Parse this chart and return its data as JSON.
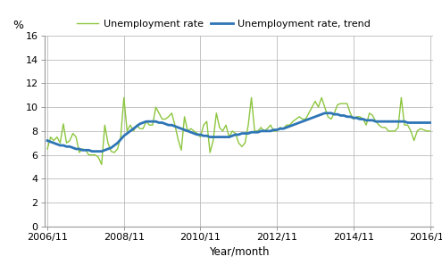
{
  "title": "",
  "ylabel": "%",
  "xlabel": "Year/month",
  "xtick_labels": [
    "2006/11",
    "2008/11",
    "2010/11",
    "2012/11",
    "2014/11",
    "2016/11"
  ],
  "ylim": [
    0,
    16
  ],
  "yticks": [
    0,
    2,
    4,
    6,
    8,
    10,
    12,
    14,
    16
  ],
  "line_color": "#8dc63f",
  "trend_color": "#2e75b6",
  "line_lw": 1.0,
  "trend_lw": 2.0,
  "legend_entries": [
    "Unemployment rate",
    "Unemployment rate, trend"
  ],
  "unemployment_rate": [
    6.5,
    7.5,
    7.2,
    7.5,
    7.0,
    8.6,
    7.0,
    7.2,
    7.8,
    7.5,
    6.2,
    6.5,
    6.4,
    6.0,
    6.0,
    6.0,
    5.8,
    5.2,
    8.5,
    7.0,
    6.3,
    6.2,
    6.5,
    7.5,
    10.8,
    8.0,
    8.5,
    8.0,
    8.5,
    8.2,
    8.2,
    8.8,
    8.5,
    8.5,
    10.0,
    9.5,
    9.0,
    9.0,
    9.2,
    9.5,
    8.5,
    7.3,
    6.4,
    9.2,
    8.0,
    8.2,
    8.0,
    7.8,
    7.5,
    8.5,
    8.8,
    6.2,
    7.2,
    9.5,
    8.3,
    8.0,
    8.5,
    7.5,
    8.0,
    7.8,
    7.0,
    6.7,
    7.0,
    8.5,
    10.8,
    8.0,
    8.0,
    8.3,
    8.0,
    8.2,
    8.5,
    8.0,
    8.0,
    8.3,
    8.2,
    8.5,
    8.5,
    8.8,
    9.0,
    9.2,
    9.0,
    9.0,
    9.5,
    10.0,
    10.5,
    10.0,
    10.8,
    10.0,
    9.2,
    9.0,
    9.5,
    10.2,
    10.3,
    10.3,
    10.3,
    9.5,
    9.0,
    9.2,
    9.2,
    9.0,
    8.5,
    9.5,
    9.3,
    8.8,
    8.5,
    8.3,
    8.3,
    8.0,
    8.0,
    8.0,
    8.3,
    10.8,
    8.5,
    8.5,
    8.0,
    7.2,
    8.0,
    8.2,
    8.1,
    8.0,
    8.0
  ],
  "trend_rate": [
    7.2,
    7.1,
    7.0,
    6.9,
    6.8,
    6.8,
    6.7,
    6.7,
    6.6,
    6.5,
    6.5,
    6.4,
    6.4,
    6.4,
    6.3,
    6.3,
    6.3,
    6.3,
    6.4,
    6.5,
    6.6,
    6.8,
    7.0,
    7.3,
    7.6,
    7.8,
    8.0,
    8.2,
    8.4,
    8.6,
    8.7,
    8.8,
    8.8,
    8.8,
    8.8,
    8.7,
    8.7,
    8.6,
    8.5,
    8.5,
    8.4,
    8.3,
    8.2,
    8.1,
    8.0,
    7.9,
    7.8,
    7.7,
    7.7,
    7.6,
    7.6,
    7.5,
    7.5,
    7.5,
    7.5,
    7.5,
    7.5,
    7.5,
    7.6,
    7.7,
    7.7,
    7.8,
    7.8,
    7.8,
    7.9,
    7.9,
    7.9,
    8.0,
    8.0,
    8.0,
    8.0,
    8.1,
    8.1,
    8.2,
    8.2,
    8.3,
    8.4,
    8.5,
    8.6,
    8.7,
    8.8,
    8.9,
    9.0,
    9.1,
    9.2,
    9.3,
    9.4,
    9.5,
    9.5,
    9.5,
    9.4,
    9.4,
    9.3,
    9.3,
    9.2,
    9.2,
    9.1,
    9.1,
    9.0,
    9.0,
    8.9,
    8.9,
    8.9,
    8.8,
    8.8,
    8.8,
    8.8,
    8.8,
    8.8,
    8.8,
    8.8,
    8.8,
    8.8,
    8.7,
    8.7,
    8.7,
    8.7,
    8.7,
    8.7,
    8.7,
    8.7
  ],
  "n_points": 121,
  "background_color": "#ffffff",
  "grid_color": "#bbbbbb"
}
